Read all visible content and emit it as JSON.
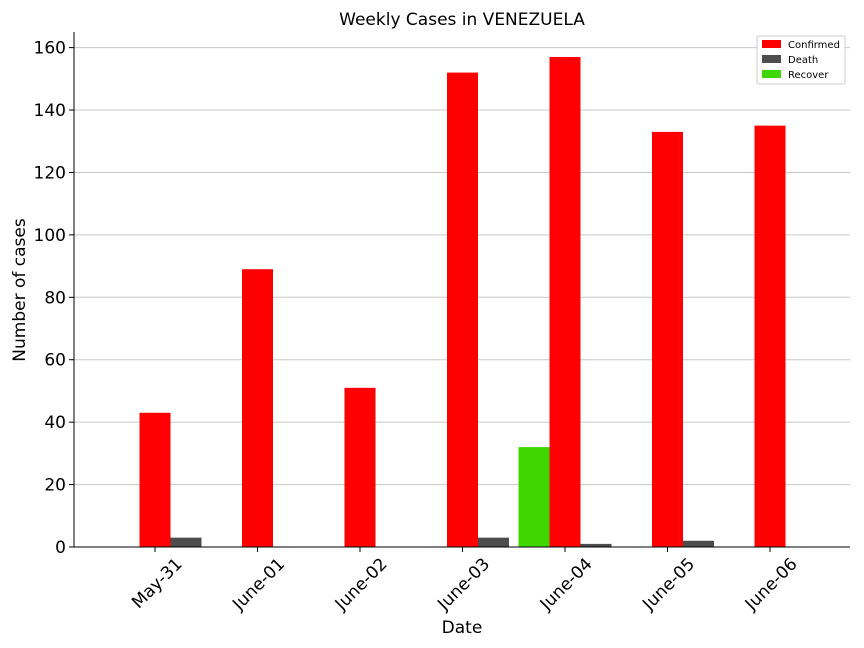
{
  "chart_data": {
    "type": "bar",
    "title": "Weekly Cases in VENEZUELA",
    "xlabel": "Date",
    "ylabel": "Number of cases",
    "categories": [
      "May-31",
      "June-01",
      "June-02",
      "June-03",
      "June-04",
      "June-05",
      "June-06"
    ],
    "yticks": [
      "0",
      "20",
      "40",
      "60",
      "80",
      "100",
      "120",
      "140",
      "160"
    ],
    "ylim": [
      0,
      165
    ],
    "grid": "horizontal",
    "legend": "top-right",
    "series": [
      {
        "name": "Confirmed",
        "color": "#ff0000",
        "values": [
          43,
          89,
          51,
          152,
          157,
          133,
          135
        ]
      },
      {
        "name": "Death",
        "color": "#4d4d4d",
        "values": [
          3,
          0,
          0,
          3,
          1,
          2,
          0
        ]
      },
      {
        "name": "Recover",
        "color": "#3ed800",
        "values": [
          0,
          0,
          0,
          0,
          32,
          0,
          0
        ]
      }
    ]
  }
}
